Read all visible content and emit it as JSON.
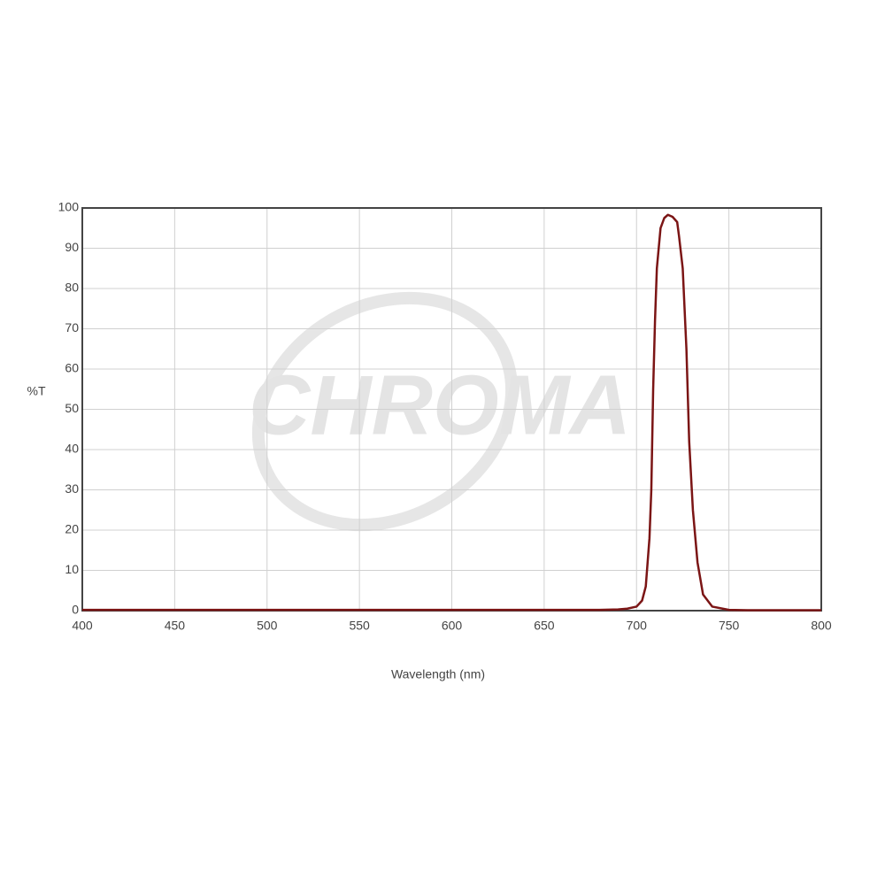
{
  "chart_data": {
    "type": "line",
    "watermark": "CHROMA",
    "xlabel": "Wavelength (nm)",
    "ylabel": "%T",
    "x": [
      400,
      500,
      600,
      680,
      690,
      695,
      700,
      703,
      705,
      707,
      708,
      709,
      710,
      711,
      713,
      715,
      717,
      719.5,
      722,
      723,
      725,
      727,
      728.5,
      730.5,
      733,
      736,
      741,
      750,
      760,
      800
    ],
    "series": [
      {
        "color": "#7b1515",
        "values": [
          0.2,
          0.2,
          0.2,
          0.2,
          0.3,
          0.5,
          1,
          2.5,
          6,
          18,
          30,
          55,
          72,
          85,
          95,
          97.5,
          98.3,
          97.8,
          96.5,
          93,
          85,
          65,
          42,
          25,
          12,
          4,
          1,
          0.2,
          0.1,
          0.1
        ]
      }
    ],
    "xlim": [
      400,
      800
    ],
    "ylim": [
      0,
      100
    ],
    "xticks": [
      400,
      450,
      500,
      550,
      600,
      650,
      700,
      750,
      800
    ],
    "yticks": [
      0,
      10,
      20,
      30,
      40,
      50,
      60,
      70,
      80,
      90,
      100
    ],
    "grid": true
  }
}
